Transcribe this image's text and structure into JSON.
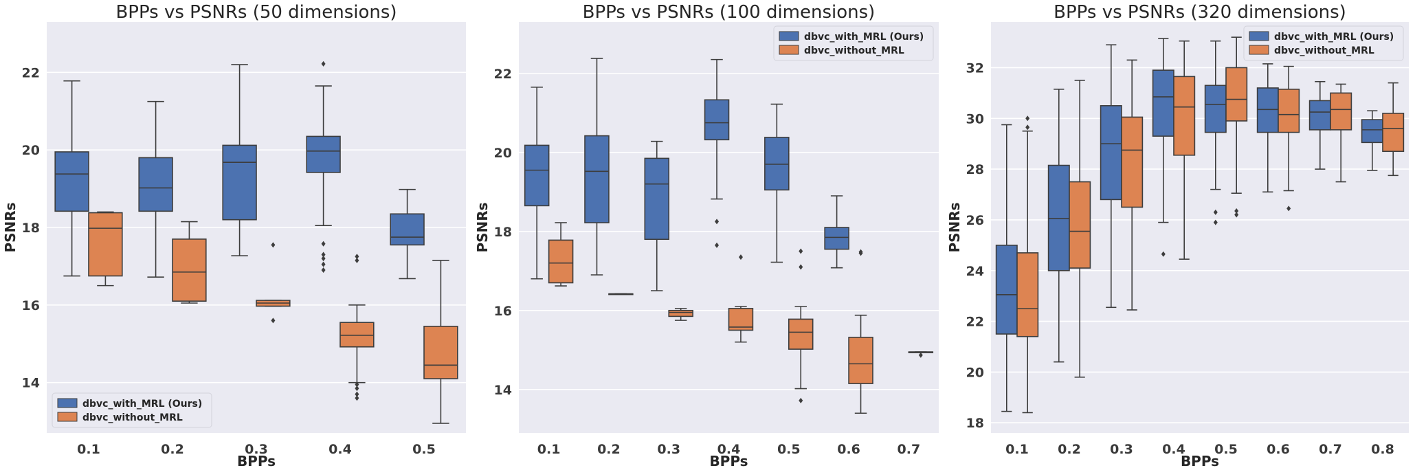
{
  "figure": {
    "colors": {
      "with_mrl": "#4c72b0",
      "without_mrl": "#dd8452",
      "plot_bg": "#eaeaf2",
      "grid": "#ffffff",
      "line": "#3d3d3d"
    }
  },
  "chart_data": [
    {
      "type": "box",
      "title": "BPPs vs PSNRs (50 dimensions)",
      "xlabel": "BPPs",
      "ylabel": "PSNRs",
      "ylim": [
        12.7,
        23.3
      ],
      "yticks": [
        14,
        16,
        18,
        20,
        22
      ],
      "categories": [
        "0.1",
        "0.2",
        "0.3",
        "0.4",
        "0.5"
      ],
      "grid": true,
      "legend_position": "lower-left",
      "series": [
        {
          "name": "dbvc_with_MRL (Ours)",
          "color": "#4c72b0",
          "boxes": [
            {
              "min": 16.75,
              "q1": 18.42,
              "median": 19.38,
              "q3": 19.95,
              "max": 21.78,
              "outliers": []
            },
            {
              "min": 16.72,
              "q1": 18.42,
              "median": 19.02,
              "q3": 19.8,
              "max": 21.25,
              "outliers": []
            },
            {
              "min": 17.27,
              "q1": 18.2,
              "median": 19.68,
              "q3": 20.12,
              "max": 22.2,
              "outliers": []
            },
            {
              "min": 18.05,
              "q1": 19.42,
              "median": 19.97,
              "q3": 20.35,
              "max": 21.65,
              "outliers": [
                22.22,
                17.58,
                17.3,
                17.2,
                17.05,
                16.9
              ]
            },
            {
              "min": 16.68,
              "q1": 17.55,
              "median": 17.75,
              "q3": 18.35,
              "max": 18.98,
              "outliers": []
            }
          ]
        },
        {
          "name": "dbvc_without_MRL",
          "color": "#dd8452",
          "boxes": [
            {
              "min": 16.5,
              "q1": 16.75,
              "median": 17.98,
              "q3": 18.38,
              "max": 18.4,
              "outliers": []
            },
            {
              "min": 16.05,
              "q1": 16.1,
              "median": 16.85,
              "q3": 17.7,
              "max": 18.15,
              "outliers": []
            },
            {
              "min": 15.97,
              "q1": 15.97,
              "median": 16.05,
              "q3": 16.12,
              "max": 16.12,
              "outliers": [
                17.55,
                15.6
              ]
            },
            {
              "min": 14.0,
              "q1": 14.92,
              "median": 15.22,
              "q3": 15.55,
              "max": 16.0,
              "outliers": [
                17.25,
                17.15,
                13.95,
                13.85,
                13.7,
                13.6
              ]
            },
            {
              "min": 12.95,
              "q1": 14.1,
              "median": 14.45,
              "q3": 15.45,
              "max": 17.15,
              "outliers": []
            }
          ]
        }
      ]
    },
    {
      "type": "box",
      "title": "BPPs vs PSNRs (100 dimensions)",
      "xlabel": "BPPs",
      "ylabel": "PSNRs",
      "ylim": [
        12.9,
        23.3
      ],
      "yticks": [
        14,
        16,
        18,
        20,
        22
      ],
      "categories": [
        "0.1",
        "0.2",
        "0.3",
        "0.4",
        "0.5",
        "0.6",
        "0.7"
      ],
      "grid": true,
      "legend_position": "upper-right",
      "series": [
        {
          "name": "dbvc_with_MRL (Ours)",
          "color": "#4c72b0",
          "boxes": [
            {
              "min": 16.8,
              "q1": 18.65,
              "median": 19.55,
              "q3": 20.18,
              "max": 21.65,
              "outliers": []
            },
            {
              "min": 16.9,
              "q1": 18.22,
              "median": 19.52,
              "q3": 20.42,
              "max": 22.38,
              "outliers": []
            },
            {
              "min": 16.5,
              "q1": 17.8,
              "median": 19.2,
              "q3": 19.85,
              "max": 20.28,
              "outliers": []
            },
            {
              "min": 18.82,
              "q1": 20.32,
              "median": 20.75,
              "q3": 21.33,
              "max": 22.35,
              "outliers": [
                18.25,
                17.65
              ]
            },
            {
              "min": 17.22,
              "q1": 19.05,
              "median": 19.7,
              "q3": 20.38,
              "max": 21.22,
              "outliers": []
            },
            {
              "min": 17.08,
              "q1": 17.55,
              "median": 17.85,
              "q3": 18.1,
              "max": 18.9,
              "outliers": []
            },
            null
          ]
        },
        {
          "name": "dbvc_without_MRL",
          "color": "#dd8452",
          "boxes": [
            {
              "min": 16.62,
              "q1": 16.7,
              "median": 17.2,
              "q3": 17.78,
              "max": 18.22,
              "outliers": []
            },
            {
              "min": 16.42,
              "q1": 16.42,
              "median": 16.42,
              "q3": 16.42,
              "max": 16.42,
              "outliers": []
            },
            {
              "min": 15.75,
              "q1": 15.85,
              "median": 15.95,
              "q3": 16.0,
              "max": 16.05,
              "outliers": []
            },
            {
              "min": 15.2,
              "q1": 15.5,
              "median": 15.58,
              "q3": 16.05,
              "max": 16.1,
              "outliers": [
                17.35
              ]
            },
            {
              "min": 14.02,
              "q1": 15.02,
              "median": 15.45,
              "q3": 15.78,
              "max": 16.1,
              "outliers": [
                17.5,
                17.1,
                13.72
              ]
            },
            {
              "min": 13.4,
              "q1": 14.15,
              "median": 14.65,
              "q3": 15.32,
              "max": 15.88,
              "outliers": [
                17.48,
                17.45
              ]
            },
            {
              "min": 14.95,
              "q1": 14.95,
              "median": 14.95,
              "q3": 14.95,
              "max": 14.95,
              "outliers": [
                14.87
              ]
            }
          ]
        }
      ]
    },
    {
      "type": "box",
      "title": "BPPs vs PSNRs (320 dimensions)",
      "xlabel": "BPPs",
      "ylabel": "PSNRs",
      "ylim": [
        17.6,
        33.8
      ],
      "yticks": [
        18,
        20,
        22,
        24,
        26,
        28,
        30,
        32
      ],
      "categories": [
        "0.1",
        "0.2",
        "0.3",
        "0.4",
        "0.5",
        "0.6",
        "0.7",
        "0.8"
      ],
      "grid": true,
      "legend_position": "upper-right",
      "series": [
        {
          "name": "dbvc_with_MRL (Ours)",
          "color": "#4c72b0",
          "boxes": [
            {
              "min": 18.45,
              "q1": 21.5,
              "median": 23.05,
              "q3": 25.0,
              "max": 29.75,
              "outliers": []
            },
            {
              "min": 20.4,
              "q1": 24.0,
              "median": 26.05,
              "q3": 28.15,
              "max": 31.15,
              "outliers": []
            },
            {
              "min": 22.55,
              "q1": 26.8,
              "median": 29.0,
              "q3": 30.5,
              "max": 32.9,
              "outliers": []
            },
            {
              "min": 25.9,
              "q1": 29.3,
              "median": 30.85,
              "q3": 31.9,
              "max": 33.15,
              "outliers": [
                24.65
              ]
            },
            {
              "min": 27.2,
              "q1": 29.45,
              "median": 30.55,
              "q3": 31.3,
              "max": 33.05,
              "outliers": [
                26.3,
                25.9
              ]
            },
            {
              "min": 27.1,
              "q1": 29.45,
              "median": 30.35,
              "q3": 31.2,
              "max": 32.15,
              "outliers": []
            },
            {
              "min": 28.0,
              "q1": 29.55,
              "median": 30.25,
              "q3": 30.7,
              "max": 31.45,
              "outliers": []
            },
            {
              "min": 27.95,
              "q1": 29.05,
              "median": 29.55,
              "q3": 29.95,
              "max": 30.3,
              "outliers": []
            }
          ]
        },
        {
          "name": "dbvc_without_MRL",
          "color": "#dd8452",
          "boxes": [
            {
              "min": 18.4,
              "q1": 21.4,
              "median": 22.5,
              "q3": 24.7,
              "max": 29.5,
              "outliers": [
                30.0,
                29.65
              ]
            },
            {
              "min": 19.8,
              "q1": 24.1,
              "median": 25.55,
              "q3": 27.5,
              "max": 31.5,
              "outliers": []
            },
            {
              "min": 22.45,
              "q1": 26.5,
              "median": 28.75,
              "q3": 30.05,
              "max": 32.3,
              "outliers": []
            },
            {
              "min": 24.45,
              "q1": 28.55,
              "median": 30.45,
              "q3": 31.65,
              "max": 33.05,
              "outliers": []
            },
            {
              "min": 27.05,
              "q1": 29.9,
              "median": 30.75,
              "q3": 32.0,
              "max": 33.2,
              "outliers": [
                26.35,
                26.2
              ]
            },
            {
              "min": 27.15,
              "q1": 29.45,
              "median": 30.15,
              "q3": 31.15,
              "max": 32.05,
              "outliers": [
                26.45
              ]
            },
            {
              "min": 27.5,
              "q1": 29.55,
              "median": 30.35,
              "q3": 31.0,
              "max": 31.35,
              "outliers": []
            },
            {
              "min": 27.75,
              "q1": 28.7,
              "median": 29.6,
              "q3": 30.2,
              "max": 31.4,
              "outliers": []
            }
          ]
        }
      ]
    }
  ]
}
